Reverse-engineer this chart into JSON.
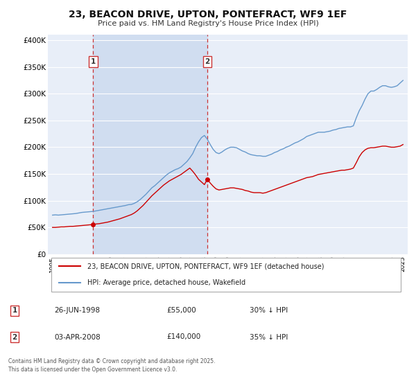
{
  "title": "23, BEACON DRIVE, UPTON, PONTEFRACT, WF9 1EF",
  "subtitle": "Price paid vs. HM Land Registry's House Price Index (HPI)",
  "bg_color": "#ffffff",
  "plot_bg_color": "#e8eef8",
  "grid_color": "#ffffff",
  "red_line_color": "#cc0000",
  "blue_line_color": "#6699cc",
  "marker_color": "#cc0000",
  "vline_color": "#cc3333",
  "shade_color": "#d0ddf0",
  "legend_label_red": "23, BEACON DRIVE, UPTON, PONTEFRACT, WF9 1EF (detached house)",
  "legend_label_blue": "HPI: Average price, detached house, Wakefield",
  "sale1_date": "26-JUN-1998",
  "sale1_price": "£55,000",
  "sale1_hpi": "30% ↓ HPI",
  "sale2_date": "03-APR-2008",
  "sale2_price": "£140,000",
  "sale2_hpi": "35% ↓ HPI",
  "footer": "Contains HM Land Registry data © Crown copyright and database right 2025.\nThis data is licensed under the Open Government Licence v3.0.",
  "ylim": [
    0,
    410000
  ],
  "yticks": [
    0,
    50000,
    100000,
    150000,
    200000,
    250000,
    300000,
    350000,
    400000
  ],
  "ytick_labels": [
    "£0",
    "£50K",
    "£100K",
    "£150K",
    "£200K",
    "£250K",
    "£300K",
    "£350K",
    "£400K"
  ],
  "sale1_x": 1998.48,
  "sale1_y": 55000,
  "sale2_x": 2008.25,
  "sale2_y": 140000,
  "xlim_left": 1994.6,
  "xlim_right": 2025.4,
  "hpi_years": [
    1995,
    1995.25,
    1995.5,
    1995.75,
    1996,
    1996.25,
    1996.5,
    1996.75,
    1997,
    1997.25,
    1997.5,
    1997.75,
    1998,
    1998.25,
    1998.5,
    1998.75,
    1999,
    1999.25,
    1999.5,
    1999.75,
    2000,
    2000.25,
    2000.5,
    2000.75,
    2001,
    2001.25,
    2001.5,
    2001.75,
    2002,
    2002.25,
    2002.5,
    2002.75,
    2003,
    2003.25,
    2003.5,
    2003.75,
    2004,
    2004.25,
    2004.5,
    2004.75,
    2005,
    2005.25,
    2005.5,
    2005.75,
    2006,
    2006.25,
    2006.5,
    2006.75,
    2007,
    2007.25,
    2007.5,
    2007.75,
    2008,
    2008.25,
    2008.5,
    2008.75,
    2009,
    2009.25,
    2009.5,
    2009.75,
    2010,
    2010.25,
    2010.5,
    2010.75,
    2011,
    2011.25,
    2011.5,
    2011.75,
    2012,
    2012.25,
    2012.5,
    2012.75,
    2013,
    2013.25,
    2013.5,
    2013.75,
    2014,
    2014.25,
    2014.5,
    2014.75,
    2015,
    2015.25,
    2015.5,
    2015.75,
    2016,
    2016.25,
    2016.5,
    2016.75,
    2017,
    2017.25,
    2017.5,
    2017.75,
    2018,
    2018.25,
    2018.5,
    2018.75,
    2019,
    2019.25,
    2019.5,
    2019.75,
    2020,
    2020.25,
    2020.5,
    2020.75,
    2021,
    2021.25,
    2021.5,
    2021.75,
    2022,
    2022.25,
    2022.5,
    2022.75,
    2023,
    2023.25,
    2023.5,
    2023.75,
    2024,
    2024.25,
    2024.5,
    2024.75,
    2025
  ],
  "hpi_values": [
    73000,
    73500,
    73000,
    73500,
    74000,
    74500,
    75000,
    75500,
    76000,
    77000,
    78000,
    78500,
    79000,
    79500,
    80000,
    81000,
    82000,
    83000,
    84000,
    85000,
    86000,
    87000,
    88000,
    89000,
    90000,
    91000,
    92500,
    93000,
    95000,
    98000,
    102000,
    107000,
    112000,
    118000,
    124000,
    128000,
    133000,
    138000,
    143000,
    148000,
    152000,
    155000,
    158000,
    160000,
    163000,
    168000,
    173000,
    180000,
    188000,
    200000,
    210000,
    218000,
    222000,
    215000,
    205000,
    196000,
    190000,
    188000,
    191000,
    195000,
    198000,
    200000,
    200000,
    199000,
    196000,
    193000,
    191000,
    188000,
    186000,
    185000,
    184000,
    184000,
    183000,
    183000,
    185000,
    187000,
    190000,
    192000,
    195000,
    197000,
    200000,
    202000,
    205000,
    208000,
    210000,
    213000,
    216000,
    220000,
    222000,
    224000,
    226000,
    228000,
    228000,
    228000,
    229000,
    230000,
    232000,
    233000,
    235000,
    236000,
    237000,
    238000,
    238000,
    240000,
    255000,
    268000,
    278000,
    290000,
    300000,
    305000,
    305000,
    308000,
    312000,
    315000,
    315000,
    313000,
    312000,
    313000,
    315000,
    320000,
    325000
  ],
  "red_years": [
    1995,
    1995.25,
    1995.5,
    1995.75,
    1996,
    1996.25,
    1996.5,
    1996.75,
    1997,
    1997.25,
    1997.5,
    1997.75,
    1998,
    1998.25,
    1998.48,
    1998.75,
    1999,
    1999.25,
    1999.5,
    1999.75,
    2000,
    2000.25,
    2000.5,
    2000.75,
    2001,
    2001.25,
    2001.5,
    2001.75,
    2002,
    2002.25,
    2002.5,
    2002.75,
    2003,
    2003.25,
    2003.5,
    2003.75,
    2004,
    2004.25,
    2004.5,
    2004.75,
    2005,
    2005.25,
    2005.5,
    2005.75,
    2006,
    2006.25,
    2006.5,
    2006.75,
    2007,
    2007.25,
    2007.5,
    2007.75,
    2008,
    2008.25,
    2008.5,
    2008.75,
    2009,
    2009.25,
    2009.5,
    2009.75,
    2010,
    2010.25,
    2010.5,
    2010.75,
    2011,
    2011.25,
    2011.5,
    2011.75,
    2012,
    2012.25,
    2012.5,
    2012.75,
    2013,
    2013.25,
    2013.5,
    2013.75,
    2014,
    2014.25,
    2014.5,
    2014.75,
    2015,
    2015.25,
    2015.5,
    2015.75,
    2016,
    2016.25,
    2016.5,
    2016.75,
    2017,
    2017.25,
    2017.5,
    2017.75,
    2018,
    2018.25,
    2018.5,
    2018.75,
    2019,
    2019.25,
    2019.5,
    2019.75,
    2020,
    2020.25,
    2020.5,
    2020.75,
    2021,
    2021.25,
    2021.5,
    2021.75,
    2022,
    2022.25,
    2022.5,
    2022.75,
    2023,
    2023.25,
    2023.5,
    2023.75,
    2024,
    2024.25,
    2024.5,
    2024.75,
    2025
  ],
  "red_values": [
    50000,
    50000,
    50500,
    51000,
    51000,
    51500,
    52000,
    52000,
    52500,
    53000,
    53500,
    54000,
    54500,
    55000,
    55000,
    56500,
    57000,
    58000,
    59000,
    60000,
    61500,
    63000,
    64500,
    66000,
    68000,
    70000,
    72000,
    74000,
    77000,
    81000,
    86000,
    91000,
    97000,
    103000,
    109000,
    114000,
    119000,
    124000,
    129000,
    133000,
    137000,
    140000,
    143000,
    146000,
    149000,
    153000,
    157000,
    161000,
    155000,
    148000,
    140000,
    135000,
    130000,
    140000,
    133000,
    127000,
    122000,
    120000,
    121000,
    122000,
    123000,
    124000,
    124000,
    123000,
    122000,
    121000,
    119000,
    118000,
    116000,
    115000,
    115000,
    115000,
    114000,
    115000,
    117000,
    119000,
    121000,
    123000,
    125000,
    127000,
    129000,
    131000,
    133000,
    135000,
    137000,
    139000,
    141000,
    143000,
    144000,
    145000,
    147000,
    149000,
    150000,
    151000,
    152000,
    153000,
    154000,
    155000,
    156000,
    157000,
    157000,
    158000,
    159000,
    161000,
    171000,
    182000,
    190000,
    195000,
    198000,
    199000,
    199000,
    200000,
    201000,
    202000,
    202000,
    201000,
    200000,
    200000,
    201000,
    202000,
    205000
  ]
}
